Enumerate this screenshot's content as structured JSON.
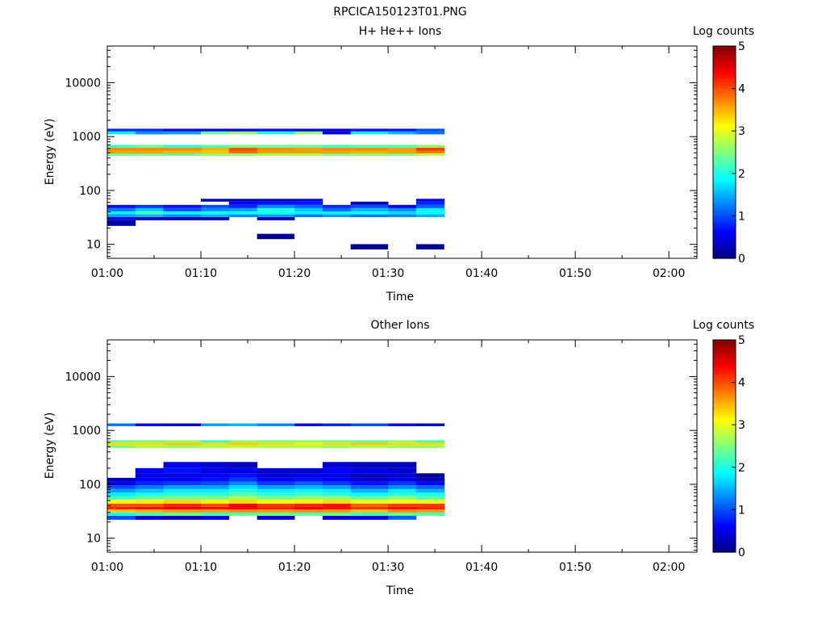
{
  "figure": {
    "title": "RPCICA150123T01.PNG"
  },
  "colorbar": {
    "label": "Log counts",
    "ticks": [
      "0",
      "1",
      "2",
      "3",
      "4",
      "5"
    ],
    "range": [
      0,
      5
    ],
    "colormap": "jet"
  },
  "chart_data": [
    {
      "type": "heatmap",
      "title": "H+ He++ Ions",
      "xlabel": "Time",
      "ylabel": "Energy (eV)",
      "y_scale": "log",
      "x_range": [
        "01:00",
        "02:03"
      ],
      "ylim": [
        5.5,
        48000
      ],
      "x_ticks": [
        "01:00",
        "01:10",
        "01:20",
        "01:30",
        "01:40",
        "01:50",
        "02:00"
      ],
      "y_ticks": [
        "10",
        "100",
        "1000",
        "10000"
      ],
      "time_bins": [
        "01:00",
        "01:03",
        "01:06",
        "01:10",
        "01:13",
        "01:16",
        "01:20",
        "01:23",
        "01:26",
        "01:30",
        "01:33",
        "01:36"
      ],
      "bands": [
        {
          "e_lo": 22,
          "e_hi": 28,
          "values": [
            0.2,
            null,
            null,
            null,
            null,
            null,
            null,
            null,
            null,
            null,
            null
          ]
        },
        {
          "e_lo": 28,
          "e_hi": 32,
          "values": [
            0.5,
            0.3,
            0.2,
            0.2,
            null,
            0.2,
            null,
            null,
            null,
            null,
            null
          ]
        },
        {
          "e_lo": 32,
          "e_hi": 36,
          "values": [
            1.4,
            1.5,
            1.3,
            1.5,
            1.3,
            1.4,
            1.2,
            1.4,
            1.2,
            1.3,
            1.5
          ]
        },
        {
          "e_lo": 36,
          "e_hi": 41,
          "values": [
            1.8,
            2.2,
            1.9,
            2.0,
            1.9,
            2.0,
            1.8,
            1.8,
            1.9,
            1.7,
            1.9
          ]
        },
        {
          "e_lo": 41,
          "e_hi": 47,
          "values": [
            1.2,
            1.6,
            1.0,
            1.3,
            1.4,
            2.0,
            1.6,
            1.1,
            1.5,
            1.3,
            1.8
          ]
        },
        {
          "e_lo": 47,
          "e_hi": 54,
          "values": [
            0.7,
            0.9,
            0.7,
            1.0,
            0.8,
            1.3,
            1.1,
            0.8,
            1.0,
            0.6,
            1.1
          ]
        },
        {
          "e_lo": 54,
          "e_hi": 62,
          "values": [
            null,
            null,
            null,
            null,
            0.6,
            0.7,
            0.7,
            null,
            0.3,
            null,
            0.8
          ]
        },
        {
          "e_lo": 62,
          "e_hi": 70,
          "values": [
            null,
            null,
            null,
            0.3,
            0.3,
            0.4,
            0.5,
            null,
            null,
            null,
            0.6
          ]
        },
        {
          "e_lo": 440,
          "e_hi": 490,
          "values": [
            2.4,
            2.5,
            2.4,
            2.6,
            2.6,
            2.7,
            2.7,
            2.5,
            2.6,
            2.5,
            2.8
          ]
        },
        {
          "e_lo": 490,
          "e_hi": 550,
          "values": [
            3.6,
            3.6,
            3.5,
            3.4,
            3.9,
            3.6,
            3.6,
            3.6,
            3.5,
            3.6,
            3.8
          ]
        },
        {
          "e_lo": 550,
          "e_hi": 620,
          "values": [
            3.7,
            3.7,
            3.7,
            3.5,
            4.0,
            3.7,
            3.6,
            3.7,
            3.7,
            3.6,
            4.1
          ]
        },
        {
          "e_lo": 620,
          "e_hi": 700,
          "values": [
            2.2,
            2.4,
            2.1,
            2.3,
            2.5,
            2.4,
            2.4,
            2.2,
            2.3,
            2.3,
            2.6
          ]
        },
        {
          "e_lo": 1100,
          "e_hi": 1250,
          "values": [
            1.8,
            1.3,
            1.4,
            2.4,
            2.6,
            2.0,
            2.6,
            0.5,
            1.8,
            1.5,
            1.2
          ]
        },
        {
          "e_lo": 1250,
          "e_hi": 1400,
          "values": [
            0.8,
            0.8,
            0.4,
            0.5,
            0.5,
            0.6,
            0.5,
            0.4,
            0.6,
            0.7,
            1.0
          ]
        }
      ],
      "sparse_points": [
        {
          "t": 5,
          "e": 14,
          "value": 0.1
        },
        {
          "t": 8,
          "e": 9,
          "value": 0.1
        },
        {
          "t": 10,
          "e": 9,
          "value": 0.1
        }
      ]
    },
    {
      "type": "heatmap",
      "title": "Other Ions",
      "xlabel": "Time",
      "ylabel": "Energy (eV)",
      "y_scale": "log",
      "x_range": [
        "01:00",
        "02:03"
      ],
      "ylim": [
        5.5,
        48000
      ],
      "x_ticks": [
        "01:00",
        "01:10",
        "01:20",
        "01:30",
        "01:40",
        "01:50",
        "02:00"
      ],
      "y_ticks": [
        "10",
        "100",
        "1000",
        "10000"
      ],
      "time_bins": [
        "01:00",
        "01:03",
        "01:06",
        "01:10",
        "01:13",
        "01:16",
        "01:20",
        "01:23",
        "01:26",
        "01:30",
        "01:33",
        "01:36"
      ],
      "bands": [
        {
          "e_lo": 22,
          "e_hi": 26,
          "values": [
            1.0,
            0.4,
            0.3,
            0.5,
            null,
            0.4,
            null,
            0.4,
            0.5,
            1.1,
            null
          ]
        },
        {
          "e_lo": 26,
          "e_hi": 30,
          "values": [
            2.0,
            2.2,
            2.4,
            2.2,
            2.3,
            2.4,
            2.3,
            2.4,
            2.2,
            2.4,
            2.3
          ]
        },
        {
          "e_lo": 30,
          "e_hi": 34,
          "values": [
            3.4,
            3.5,
            3.6,
            3.6,
            3.7,
            3.6,
            3.7,
            3.6,
            3.4,
            3.7,
            3.6
          ]
        },
        {
          "e_lo": 34,
          "e_hi": 38,
          "values": [
            4.2,
            4.3,
            4.4,
            4.3,
            4.4,
            4.2,
            4.4,
            4.3,
            4.1,
            4.3,
            4.2
          ]
        },
        {
          "e_lo": 38,
          "e_hi": 44,
          "values": [
            4.0,
            4.0,
            4.2,
            4.0,
            4.4,
            4.1,
            4.2,
            4.3,
            3.9,
            4.1,
            4.1
          ]
        },
        {
          "e_lo": 44,
          "e_hi": 52,
          "values": [
            3.1,
            3.2,
            3.3,
            3.2,
            3.3,
            3.1,
            3.2,
            3.3,
            3.0,
            3.1,
            3.0
          ]
        },
        {
          "e_lo": 52,
          "e_hi": 60,
          "values": [
            2.2,
            2.4,
            2.5,
            2.5,
            2.7,
            2.5,
            2.6,
            2.6,
            2.4,
            2.6,
            2.3
          ]
        },
        {
          "e_lo": 60,
          "e_hi": 70,
          "values": [
            1.8,
            2.0,
            2.1,
            2.1,
            2.3,
            2.1,
            2.2,
            2.1,
            1.9,
            2.1,
            2.0
          ]
        },
        {
          "e_lo": 70,
          "e_hi": 82,
          "values": [
            1.4,
            1.6,
            1.8,
            1.8,
            2.0,
            1.8,
            1.9,
            1.8,
            1.5,
            1.8,
            1.5
          ]
        },
        {
          "e_lo": 82,
          "e_hi": 96,
          "values": [
            1.0,
            1.2,
            1.4,
            1.4,
            1.7,
            1.4,
            1.5,
            1.4,
            1.1,
            1.3,
            1.1
          ]
        },
        {
          "e_lo": 96,
          "e_hi": 112,
          "values": [
            0.6,
            0.8,
            0.9,
            1.0,
            1.3,
            0.9,
            1.1,
            0.9,
            0.7,
            0.9,
            0.6
          ]
        },
        {
          "e_lo": 112,
          "e_hi": 132,
          "values": [
            0.3,
            0.6,
            0.6,
            0.7,
            0.9,
            0.6,
            0.7,
            0.6,
            0.4,
            0.5,
            0.3
          ]
        },
        {
          "e_lo": 132,
          "e_hi": 160,
          "values": [
            null,
            0.5,
            0.5,
            0.6,
            0.7,
            0.4,
            0.5,
            0.5,
            0.3,
            0.4,
            0.1
          ]
        },
        {
          "e_lo": 160,
          "e_hi": 200,
          "values": [
            null,
            0.6,
            0.7,
            0.5,
            0.5,
            0.4,
            0.4,
            0.6,
            0.5,
            0.4,
            null
          ]
        },
        {
          "e_lo": 200,
          "e_hi": 260,
          "values": [
            null,
            null,
            0.5,
            0.4,
            0.3,
            null,
            null,
            0.4,
            0.3,
            0.3,
            null
          ]
        },
        {
          "e_lo": 470,
          "e_hi": 530,
          "values": [
            2.5,
            2.7,
            2.6,
            2.7,
            2.8,
            2.7,
            2.7,
            2.6,
            2.7,
            2.6,
            2.6
          ]
        },
        {
          "e_lo": 530,
          "e_hi": 590,
          "values": [
            3.3,
            3.3,
            3.4,
            3.3,
            3.4,
            3.3,
            3.2,
            3.3,
            3.4,
            3.3,
            3.3
          ]
        },
        {
          "e_lo": 590,
          "e_hi": 660,
          "values": [
            2.4,
            2.5,
            2.6,
            2.2,
            2.6,
            2.5,
            2.6,
            2.5,
            2.4,
            2.6,
            2.3
          ]
        },
        {
          "e_lo": 1200,
          "e_hi": 1350,
          "values": [
            1.2,
            0.5,
            0.4,
            1.4,
            1.5,
            1.3,
            0.6,
            0.8,
            1.0,
            0.6,
            0.3
          ]
        }
      ],
      "sparse_points": []
    }
  ]
}
